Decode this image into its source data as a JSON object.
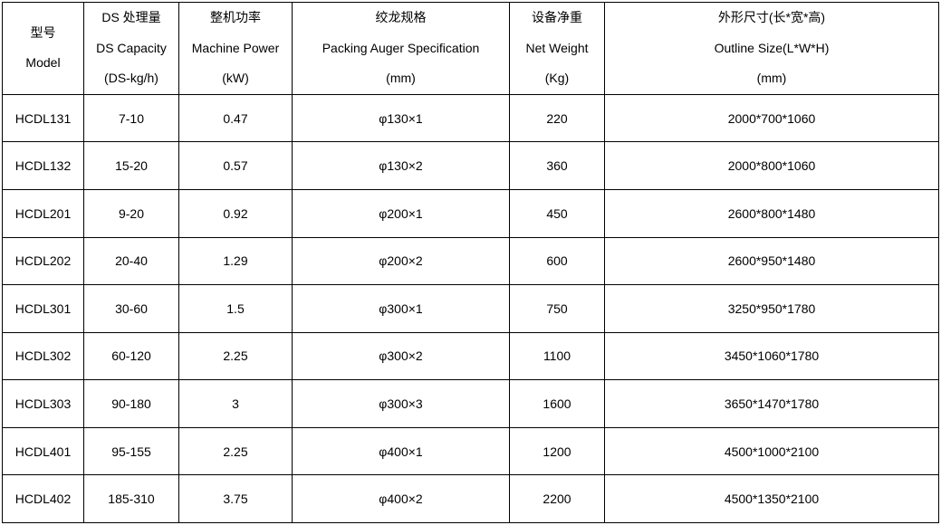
{
  "table": {
    "text_color": "#000000",
    "border_color": "#000000",
    "background_color": "#ffffff",
    "font_size_pt": 11,
    "header": {
      "model": {
        "line1": "型号",
        "line2": "Model"
      },
      "cap": {
        "line1": "DS 处理量",
        "line2": "DS Capacity",
        "line3": "(DS-kg/h)"
      },
      "power": {
        "line1": "整机功率",
        "line2": "Machine Power",
        "line3": "(kW)"
      },
      "auger": {
        "line1": "绞龙规格",
        "line2": "Packing Auger Specification",
        "line3": "(mm)"
      },
      "weight": {
        "line1": "设备净重",
        "line2": "Net Weight",
        "line3": "(Kg)"
      },
      "size": {
        "line1": "外形尺寸(长*宽*高)",
        "line2": "Outline Size(L*W*H)",
        "line3": "(mm)"
      }
    },
    "rows": [
      {
        "model": "HCDL131",
        "cap": "7-10",
        "power": "0.47",
        "auger": "φ130×1",
        "weight": "220",
        "size": "2000*700*1060"
      },
      {
        "model": "HCDL132",
        "cap": "15-20",
        "power": "0.57",
        "auger": "φ130×2",
        "weight": "360",
        "size": "2000*800*1060"
      },
      {
        "model": "HCDL201",
        "cap": "9-20",
        "power": "0.92",
        "auger": "φ200×1",
        "weight": "450",
        "size": "2600*800*1480"
      },
      {
        "model": "HCDL202",
        "cap": "20-40",
        "power": "1.29",
        "auger": "φ200×2",
        "weight": "600",
        "size": "2600*950*1480"
      },
      {
        "model": "HCDL301",
        "cap": "30-60",
        "power": "1.5",
        "auger": "φ300×1",
        "weight": "750",
        "size": "3250*950*1780"
      },
      {
        "model": "HCDL302",
        "cap": "60-120",
        "power": "2.25",
        "auger": "φ300×2",
        "weight": "1100",
        "size": "3450*1060*1780"
      },
      {
        "model": "HCDL303",
        "cap": "90-180",
        "power": "3",
        "auger": "φ300×3",
        "weight": "1600",
        "size": "3650*1470*1780"
      },
      {
        "model": "HCDL401",
        "cap": "95-155",
        "power": "2.25",
        "auger": "φ400×1",
        "weight": "1200",
        "size": "4500*1000*2100"
      },
      {
        "model": "HCDL402",
        "cap": "185-310",
        "power": "3.75",
        "auger": "φ400×2",
        "weight": "2200",
        "size": "4500*1350*2100"
      }
    ]
  }
}
